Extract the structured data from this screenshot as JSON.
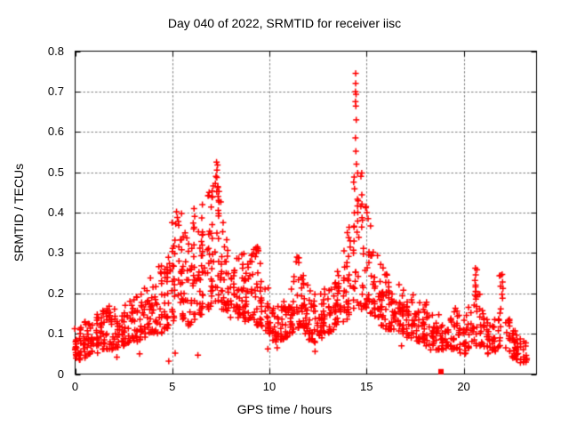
{
  "chart_data": {
    "type": "scatter",
    "title": "Day 040 of 2022, SRMTID for receiver iisc",
    "xlabel": "GPS time / hours",
    "ylabel": "SRMTID / TECUs",
    "xlim": [
      0,
      23.75
    ],
    "ylim": [
      0,
      0.8
    ],
    "xticks": [
      [
        0,
        "0"
      ],
      [
        5,
        "5"
      ],
      [
        10,
        "10"
      ],
      [
        15,
        "15"
      ],
      [
        20,
        "20"
      ]
    ],
    "yticks": [
      [
        0,
        "0"
      ],
      [
        0.1,
        "0.1"
      ],
      [
        0.2,
        "0.2"
      ],
      [
        0.3,
        "0.3"
      ],
      [
        0.4,
        "0.4"
      ],
      [
        0.5,
        "0.5"
      ],
      [
        0.6,
        "0.6"
      ],
      [
        0.7,
        "0.7"
      ],
      [
        0.8,
        "0.8"
      ]
    ],
    "grid": true,
    "grid_style": "dashed",
    "legend": "none",
    "marker": {
      "shape": "plus",
      "color": "#ff0000",
      "size": 7,
      "stroke": 1.5
    },
    "colors": {
      "marker": "#ff0000",
      "grid": "#808080",
      "border": "#000000",
      "text": "#000000",
      "background": "#ffffff"
    },
    "representation": "binned_density_envelope",
    "seed": 7,
    "bias": 1.5,
    "density_bins": [
      [
        0.0,
        0.25,
        22,
        0.035,
        0.115
      ],
      [
        0.25,
        0.5,
        16,
        0.04,
        0.12
      ],
      [
        0.5,
        0.75,
        14,
        0.045,
        0.13
      ],
      [
        0.75,
        1.0,
        14,
        0.05,
        0.14
      ],
      [
        1.0,
        1.25,
        15,
        0.05,
        0.15
      ],
      [
        1.25,
        1.5,
        15,
        0.06,
        0.16
      ],
      [
        1.5,
        1.75,
        16,
        0.06,
        0.165
      ],
      [
        1.75,
        2.0,
        15,
        0.06,
        0.17
      ],
      [
        2.0,
        2.25,
        15,
        0.065,
        0.17
      ],
      [
        2.25,
        2.5,
        14,
        0.07,
        0.17
      ],
      [
        2.5,
        2.75,
        14,
        0.07,
        0.18
      ],
      [
        2.75,
        3.0,
        14,
        0.08,
        0.19
      ],
      [
        3.0,
        3.25,
        14,
        0.08,
        0.195
      ],
      [
        3.25,
        3.5,
        14,
        0.085,
        0.2
      ],
      [
        3.5,
        3.75,
        14,
        0.09,
        0.22
      ],
      [
        3.75,
        4.0,
        14,
        0.1,
        0.24
      ],
      [
        4.0,
        4.25,
        14,
        0.1,
        0.26
      ],
      [
        4.25,
        4.5,
        14,
        0.1,
        0.28
      ],
      [
        4.5,
        4.75,
        15,
        0.11,
        0.28
      ],
      [
        4.75,
        5.0,
        16,
        0.12,
        0.31
      ],
      [
        5.0,
        5.25,
        17,
        0.13,
        0.38
      ],
      [
        5.25,
        5.5,
        17,
        0.14,
        0.4
      ],
      [
        5.5,
        5.75,
        16,
        0.13,
        0.36
      ],
      [
        5.75,
        6.0,
        16,
        0.12,
        0.34
      ],
      [
        6.0,
        6.25,
        17,
        0.13,
        0.41
      ],
      [
        6.25,
        6.5,
        17,
        0.14,
        0.38
      ],
      [
        6.5,
        6.75,
        17,
        0.15,
        0.42
      ],
      [
        6.75,
        7.0,
        18,
        0.16,
        0.45
      ],
      [
        7.0,
        7.25,
        18,
        0.18,
        0.5
      ],
      [
        7.25,
        7.5,
        18,
        0.18,
        0.53
      ],
      [
        7.5,
        7.75,
        17,
        0.16,
        0.4
      ],
      [
        7.75,
        8.0,
        16,
        0.15,
        0.36
      ],
      [
        8.0,
        8.25,
        16,
        0.14,
        0.33
      ],
      [
        8.25,
        8.5,
        16,
        0.14,
        0.31
      ],
      [
        8.5,
        8.75,
        16,
        0.14,
        0.3
      ],
      [
        8.75,
        9.0,
        16,
        0.13,
        0.29
      ],
      [
        9.0,
        9.25,
        16,
        0.13,
        0.31
      ],
      [
        9.25,
        9.5,
        16,
        0.12,
        0.315
      ],
      [
        9.5,
        9.75,
        15,
        0.11,
        0.28
      ],
      [
        9.75,
        10.0,
        14,
        0.1,
        0.22
      ],
      [
        10.0,
        10.25,
        14,
        0.08,
        0.18
      ],
      [
        10.25,
        10.5,
        14,
        0.08,
        0.17
      ],
      [
        10.5,
        10.75,
        14,
        0.085,
        0.18
      ],
      [
        10.75,
        11.0,
        15,
        0.09,
        0.22
      ],
      [
        11.0,
        11.25,
        15,
        0.1,
        0.24
      ],
      [
        11.25,
        11.5,
        17,
        0.11,
        0.29
      ],
      [
        11.5,
        11.75,
        17,
        0.12,
        0.28
      ],
      [
        11.75,
        12.0,
        16,
        0.1,
        0.24
      ],
      [
        12.0,
        12.25,
        15,
        0.085,
        0.21
      ],
      [
        12.25,
        12.5,
        14,
        0.075,
        0.2
      ],
      [
        12.5,
        12.75,
        14,
        0.09,
        0.2
      ],
      [
        12.75,
        13.0,
        15,
        0.1,
        0.22
      ],
      [
        13.0,
        13.25,
        15,
        0.1,
        0.22
      ],
      [
        13.25,
        13.5,
        15,
        0.11,
        0.25
      ],
      [
        13.5,
        13.75,
        15,
        0.12,
        0.28
      ],
      [
        13.75,
        14.0,
        15,
        0.13,
        0.32
      ],
      [
        14.0,
        14.25,
        16,
        0.14,
        0.38
      ],
      [
        14.25,
        14.5,
        17,
        0.16,
        0.5
      ],
      [
        14.5,
        14.75,
        17,
        0.17,
        0.5
      ],
      [
        14.75,
        15.0,
        17,
        0.16,
        0.44
      ],
      [
        15.0,
        15.25,
        17,
        0.15,
        0.4
      ],
      [
        15.25,
        15.5,
        16,
        0.14,
        0.34
      ],
      [
        15.5,
        15.75,
        16,
        0.13,
        0.31
      ],
      [
        15.75,
        16.0,
        16,
        0.12,
        0.28
      ],
      [
        16.0,
        16.25,
        16,
        0.11,
        0.26
      ],
      [
        16.25,
        16.5,
        16,
        0.11,
        0.25
      ],
      [
        16.5,
        16.75,
        15,
        0.1,
        0.24
      ],
      [
        16.75,
        17.0,
        15,
        0.1,
        0.23
      ],
      [
        17.0,
        17.25,
        14,
        0.09,
        0.22
      ],
      [
        17.25,
        17.5,
        14,
        0.09,
        0.2
      ],
      [
        17.5,
        17.75,
        14,
        0.08,
        0.19
      ],
      [
        17.75,
        18.0,
        14,
        0.08,
        0.18
      ],
      [
        18.0,
        18.25,
        14,
        0.07,
        0.18
      ],
      [
        18.25,
        18.5,
        13,
        0.07,
        0.16
      ],
      [
        18.5,
        18.75,
        12,
        0.06,
        0.15
      ],
      [
        18.75,
        19.0,
        12,
        0.06,
        0.14
      ],
      [
        19.0,
        19.25,
        12,
        0.06,
        0.14
      ],
      [
        19.25,
        19.5,
        12,
        0.06,
        0.15
      ],
      [
        19.5,
        19.75,
        12,
        0.06,
        0.17
      ],
      [
        19.75,
        20.0,
        12,
        0.05,
        0.18
      ],
      [
        20.0,
        20.25,
        12,
        0.05,
        0.17
      ],
      [
        20.25,
        20.5,
        13,
        0.06,
        0.2
      ],
      [
        20.5,
        20.75,
        14,
        0.07,
        0.26
      ],
      [
        20.75,
        21.0,
        13,
        0.07,
        0.2
      ],
      [
        21.0,
        21.25,
        12,
        0.06,
        0.15
      ],
      [
        21.25,
        21.5,
        12,
        0.05,
        0.13
      ],
      [
        21.5,
        21.75,
        12,
        0.05,
        0.14
      ],
      [
        21.75,
        22.1,
        15,
        0.06,
        0.25
      ],
      [
        22.1,
        22.4,
        15,
        0.05,
        0.14
      ],
      [
        22.4,
        22.7,
        18,
        0.04,
        0.115
      ],
      [
        22.7,
        23.0,
        16,
        0.035,
        0.1
      ],
      [
        23.0,
        23.3,
        12,
        0.03,
        0.085
      ]
    ],
    "notable_points": [
      [
        14.44,
        0.745
      ],
      [
        14.44,
        0.72
      ],
      [
        14.43,
        0.7
      ],
      [
        14.46,
        0.693
      ],
      [
        14.43,
        0.675
      ],
      [
        14.45,
        0.664
      ],
      [
        14.47,
        0.63
      ],
      [
        14.43,
        0.585
      ],
      [
        14.45,
        0.552
      ],
      [
        14.48,
        0.52
      ],
      [
        7.28,
        0.525
      ],
      [
        7.33,
        0.518
      ],
      [
        7.3,
        0.505
      ],
      [
        7.25,
        0.49
      ],
      [
        7.22,
        0.472
      ],
      [
        7.34,
        0.462
      ],
      [
        7.29,
        0.452
      ],
      [
        7.36,
        0.44
      ],
      [
        5.22,
        0.402
      ],
      [
        5.26,
        0.388
      ],
      [
        5.18,
        0.372
      ],
      [
        6.12,
        0.41
      ],
      [
        6.55,
        0.42
      ],
      [
        6.9,
        0.45
      ],
      [
        9.38,
        0.315
      ],
      [
        9.43,
        0.305
      ],
      [
        9.33,
        0.3
      ],
      [
        11.42,
        0.29
      ],
      [
        11.38,
        0.278
      ],
      [
        14.97,
        0.415
      ],
      [
        15.02,
        0.4
      ],
      [
        15.08,
        0.385
      ],
      [
        20.6,
        0.262
      ],
      [
        20.62,
        0.246
      ],
      [
        20.58,
        0.232
      ],
      [
        20.61,
        0.216
      ],
      [
        20.63,
        0.205
      ],
      [
        20.59,
        0.195
      ],
      [
        21.98,
        0.247
      ],
      [
        22.0,
        0.228
      ],
      [
        22.02,
        0.212
      ],
      [
        21.97,
        0.198
      ],
      [
        22.0,
        0.188
      ],
      [
        2.15,
        0.042
      ],
      [
        3.32,
        0.05
      ],
      [
        4.82,
        0.032
      ],
      [
        5.15,
        0.052
      ],
      [
        6.32,
        0.047
      ],
      [
        9.92,
        0.062
      ],
      [
        12.35,
        0.056
      ],
      [
        22.92,
        0.028
      ],
      [
        10.4,
        0.065
      ],
      [
        16.8,
        0.07
      ],
      [
        18.3,
        0.06
      ]
    ],
    "special_points": [
      {
        "x": 18.83,
        "y": 0.006,
        "marker": "filled-square",
        "color": "#ff0000",
        "size": 6
      }
    ]
  }
}
